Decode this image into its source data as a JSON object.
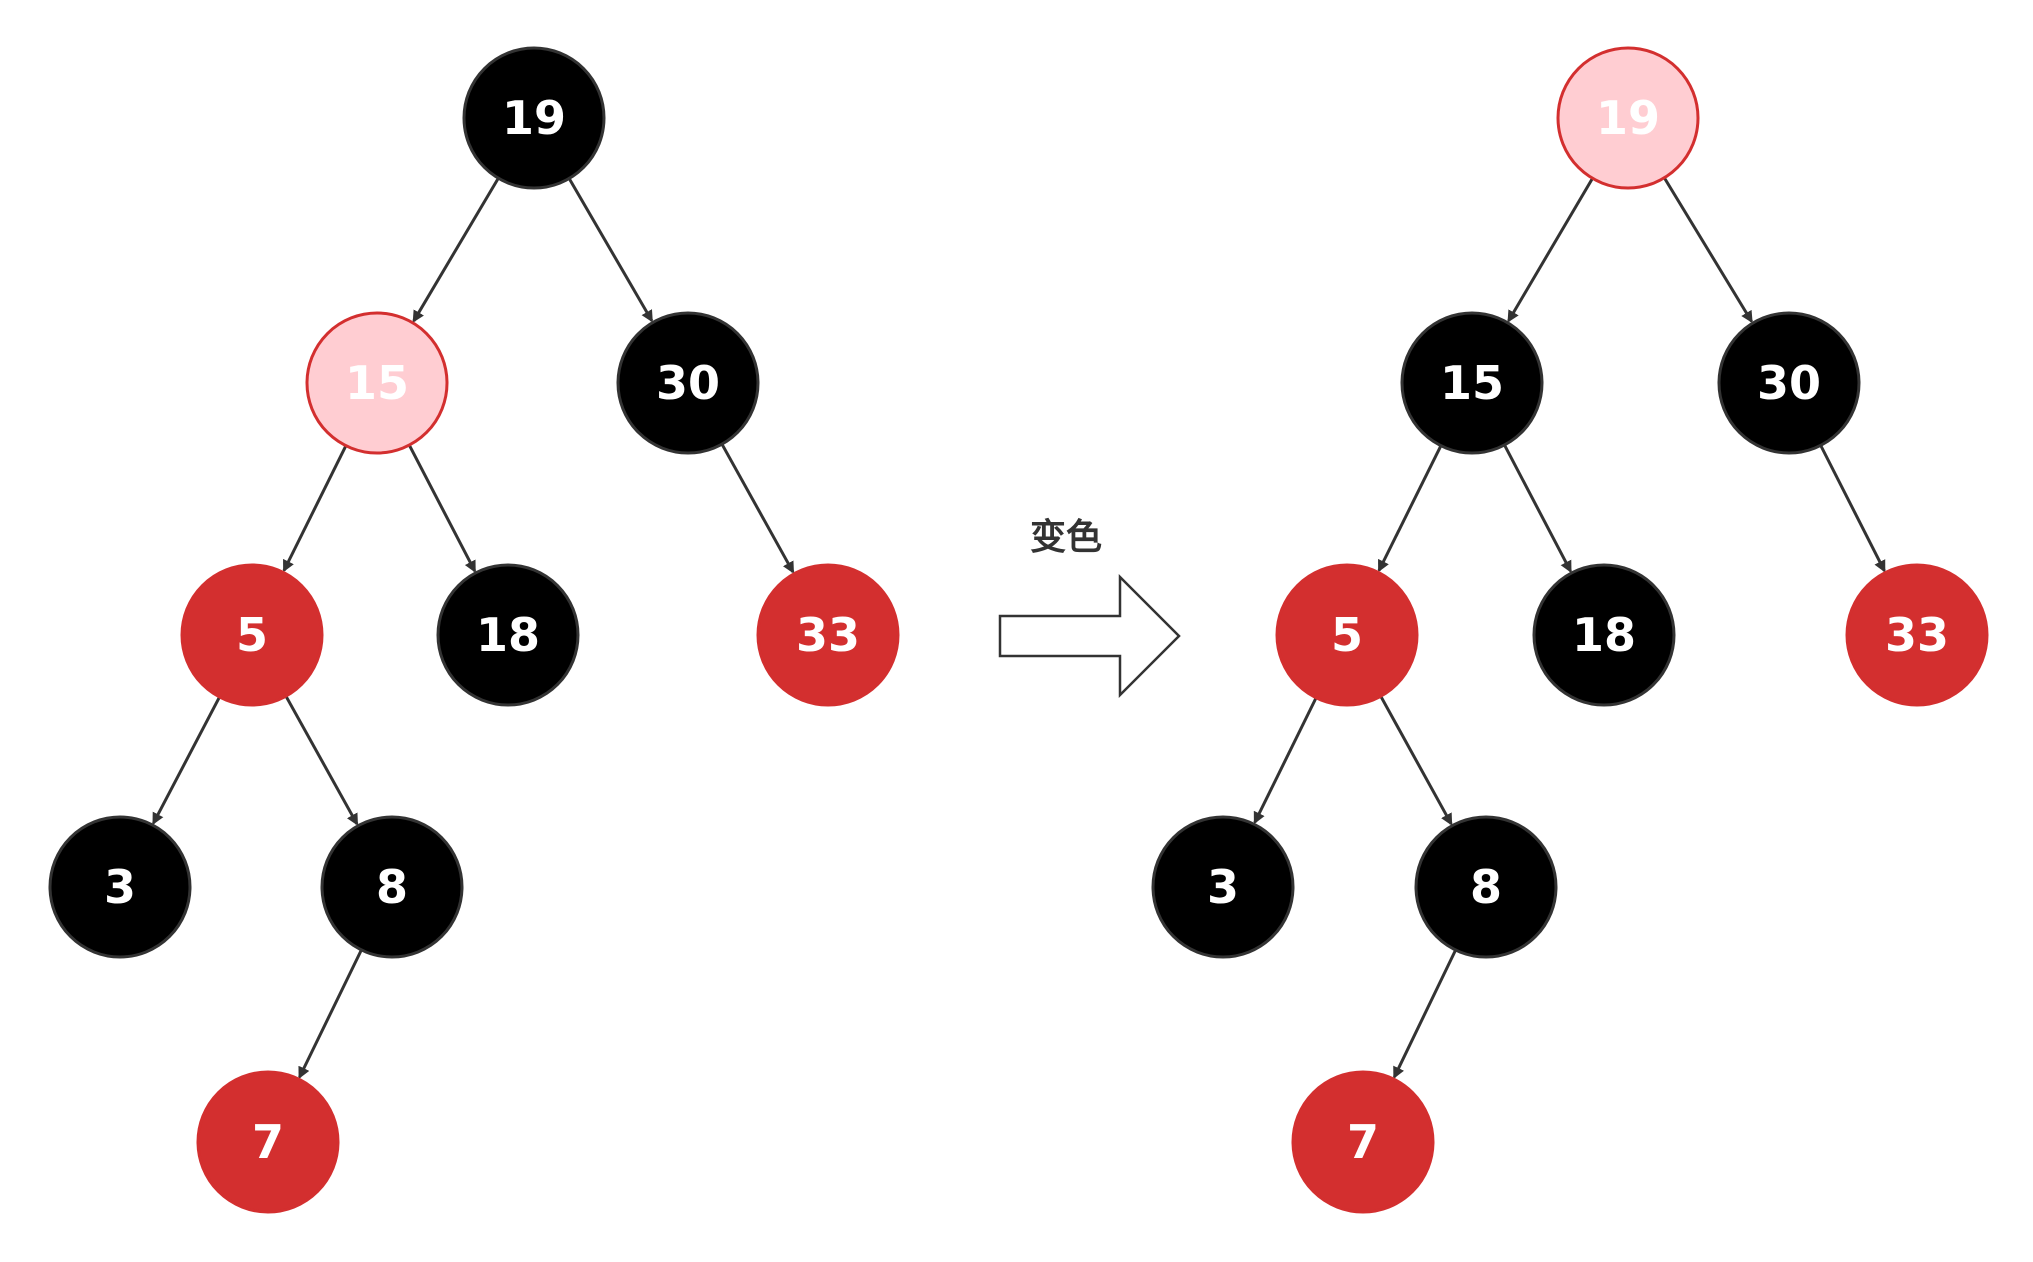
{
  "colors": {
    "black_fill": "#000000",
    "black_stroke": "#333333",
    "red_fill": "#d32f2f",
    "red_stroke": "#d32f2f",
    "pink_fill": "#ffcdd2",
    "pink_stroke": "#d32f2f",
    "edge": "#333333",
    "label_on_dark": "#ffffff",
    "label_on_pink": "#ffffff"
  },
  "caption": "变色",
  "trees": [
    {
      "id": "before",
      "nodes": [
        {
          "id": "n19",
          "label": "19",
          "color": "black"
        },
        {
          "id": "n15",
          "label": "15",
          "color": "pink"
        },
        {
          "id": "n30",
          "label": "30",
          "color": "black"
        },
        {
          "id": "n5",
          "label": "5",
          "color": "red"
        },
        {
          "id": "n18",
          "label": "18",
          "color": "black"
        },
        {
          "id": "n33",
          "label": "33",
          "color": "red"
        },
        {
          "id": "n3",
          "label": "3",
          "color": "black"
        },
        {
          "id": "n8",
          "label": "8",
          "color": "black"
        },
        {
          "id": "n7",
          "label": "7",
          "color": "red"
        }
      ],
      "edges": [
        [
          "n19",
          "n15"
        ],
        [
          "n19",
          "n30"
        ],
        [
          "n15",
          "n5"
        ],
        [
          "n15",
          "n18"
        ],
        [
          "n30",
          "n33"
        ],
        [
          "n5",
          "n3"
        ],
        [
          "n5",
          "n8"
        ],
        [
          "n8",
          "n7"
        ]
      ]
    },
    {
      "id": "after",
      "nodes": [
        {
          "id": "n19",
          "label": "19",
          "color": "pink"
        },
        {
          "id": "n15",
          "label": "15",
          "color": "black"
        },
        {
          "id": "n30",
          "label": "30",
          "color": "black"
        },
        {
          "id": "n5",
          "label": "5",
          "color": "red"
        },
        {
          "id": "n18",
          "label": "18",
          "color": "black"
        },
        {
          "id": "n33",
          "label": "33",
          "color": "red"
        },
        {
          "id": "n3",
          "label": "3",
          "color": "black"
        },
        {
          "id": "n8",
          "label": "8",
          "color": "black"
        },
        {
          "id": "n7",
          "label": "7",
          "color": "red"
        }
      ],
      "edges": [
        [
          "n19",
          "n15"
        ],
        [
          "n19",
          "n30"
        ],
        [
          "n15",
          "n5"
        ],
        [
          "n15",
          "n18"
        ],
        [
          "n30",
          "n33"
        ],
        [
          "n5",
          "n3"
        ],
        [
          "n5",
          "n8"
        ],
        [
          "n8",
          "n7"
        ]
      ]
    }
  ]
}
